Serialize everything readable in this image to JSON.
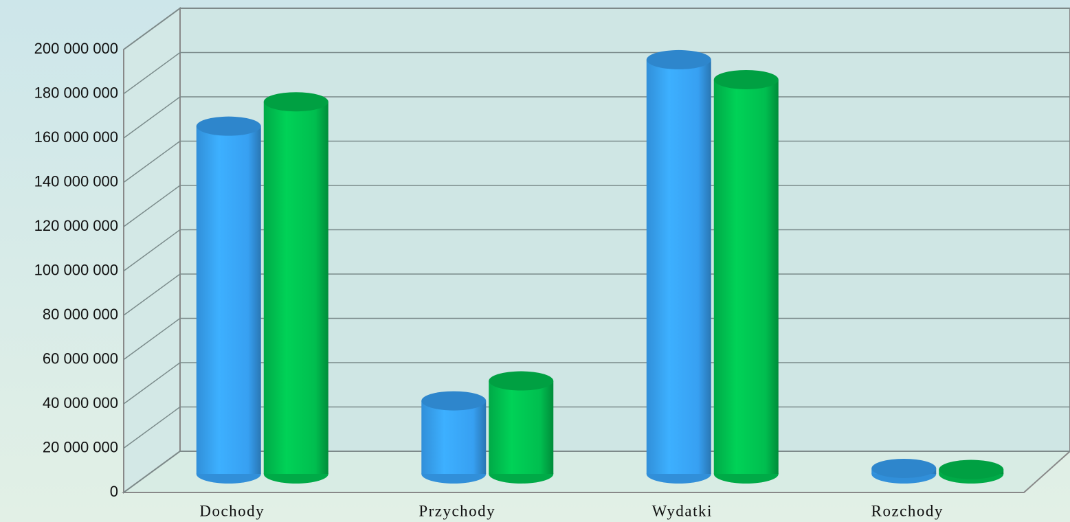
{
  "chart_data": {
    "type": "bar3d",
    "categories": [
      "Dochody",
      "Przychody",
      "Wydatki",
      "Rozchody"
    ],
    "series": [
      {
        "color": "#3aa8ff",
        "values": [
          157000000,
          33000000,
          187000000,
          2500000
        ]
      },
      {
        "color": "#00c853",
        "values": [
          168000000,
          42000000,
          178000000,
          2000000
        ]
      }
    ],
    "ylim": [
      0,
      200000000
    ],
    "yticks": [
      0,
      {
        "value": 20000000,
        "label": "20 000 000"
      },
      {
        "value": 40000000,
        "label": "40 000 000"
      },
      {
        "value": 60000000,
        "label": "60 000 000"
      },
      {
        "value": 80000000,
        "label": "80 000 000"
      },
      {
        "value": 100000000,
        "label": "100 000 000"
      },
      {
        "value": 120000000,
        "label": "120 000 000"
      },
      {
        "value": 140000000,
        "label": "140 000 000"
      },
      {
        "value": 160000000,
        "label": "160 000 000"
      },
      {
        "value": 180000000,
        "label": "180 000 000"
      },
      {
        "value": 200000000,
        "label": "200 000 000"
      }
    ],
    "grid": true
  }
}
